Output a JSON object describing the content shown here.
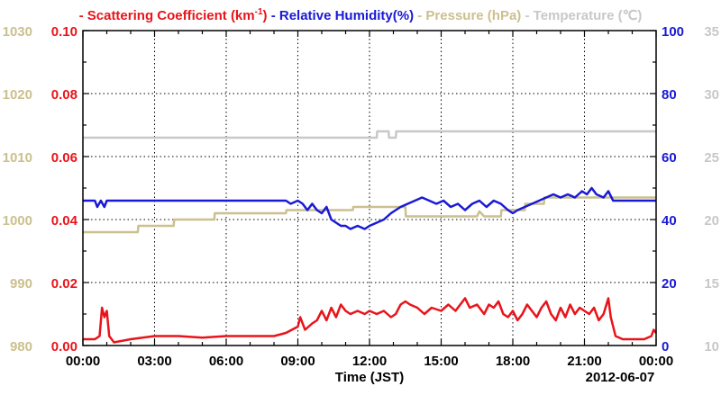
{
  "chart_data": {
    "type": "line",
    "title_parts": [
      {
        "dash": "-",
        "text": "Scattering Coefficient (km",
        "sup": "-1",
        "tail": ")",
        "color": "#e8141a"
      },
      {
        "dash": "-",
        "text": "Relative Humidity(%)",
        "sup": "",
        "tail": "",
        "color": "#1a1ad6"
      },
      {
        "dash": "-",
        "text": "Pressure (hPa)",
        "sup": "",
        "tail": "",
        "color": "#cbc08e"
      },
      {
        "dash": "-",
        "text": "Temperature (℃)",
        "sup": "",
        "tail": "",
        "color": "#c8c8c8"
      }
    ],
    "xlabel": "Time (JST)",
    "date_label": "2012-06-07",
    "x_ticks": [
      "00:00",
      "03:00",
      "06:00",
      "09:00",
      "12:00",
      "15:00",
      "18:00",
      "21:00",
      "00:00"
    ],
    "xlim": [
      0,
      24
    ],
    "grid": true,
    "axes": {
      "scattering": {
        "ylim": [
          0,
          0.1
        ],
        "ticks": [
          "0.00",
          "0.02",
          "0.04",
          "0.06",
          "0.08",
          "0.10"
        ],
        "color": "#e8141a"
      },
      "pressure": {
        "ylim": [
          980,
          1030
        ],
        "ticks": [
          "980",
          "990",
          "1000",
          "1010",
          "1020",
          "1030"
        ],
        "color": "#cbc08e"
      },
      "humidity": {
        "ylim": [
          0,
          100
        ],
        "ticks": [
          "0",
          "20",
          "40",
          "60",
          "80",
          "100"
        ],
        "color": "#1a1ad6"
      },
      "temperature": {
        "ylim": [
          10,
          35
        ],
        "ticks": [
          "10",
          "15",
          "20",
          "25",
          "30",
          "35"
        ],
        "color": "#c8c8c8"
      }
    },
    "series": [
      {
        "axis": "temperature",
        "color": "#c8c8c8",
        "points": [
          [
            0,
            26.5
          ],
          [
            12.3,
            26.5
          ],
          [
            12.32,
            27
          ],
          [
            12.8,
            27
          ],
          [
            12.82,
            26.5
          ],
          [
            13.1,
            26.5
          ],
          [
            13.12,
            27
          ],
          [
            24,
            27
          ]
        ]
      },
      {
        "axis": "pressure",
        "color": "#cbc08e",
        "points": [
          [
            0,
            998
          ],
          [
            2.3,
            998
          ],
          [
            2.32,
            999
          ],
          [
            3.8,
            999
          ],
          [
            3.82,
            1000
          ],
          [
            5.5,
            1000
          ],
          [
            5.52,
            1001
          ],
          [
            8.5,
            1001
          ],
          [
            8.52,
            1001.5
          ],
          [
            11.3,
            1001.5
          ],
          [
            11.32,
            1002
          ],
          [
            13.5,
            1002
          ],
          [
            13.52,
            1000.5
          ],
          [
            16.5,
            1000.5
          ],
          [
            16.6,
            1001.3
          ],
          [
            16.8,
            1000.5
          ],
          [
            17.5,
            1000.5
          ],
          [
            17.52,
            1001.5
          ],
          [
            18.5,
            1001.5
          ],
          [
            18.52,
            1002.5
          ],
          [
            19.3,
            1002.5
          ],
          [
            19.32,
            1003.5
          ],
          [
            24,
            1003.5
          ]
        ]
      },
      {
        "axis": "humidity",
        "color": "#1a1ad6",
        "points": [
          [
            0,
            46
          ],
          [
            0.5,
            46
          ],
          [
            0.6,
            44
          ],
          [
            0.75,
            46
          ],
          [
            0.9,
            44
          ],
          [
            1,
            46
          ],
          [
            8.5,
            46
          ],
          [
            8.7,
            45
          ],
          [
            9,
            46
          ],
          [
            9.2,
            45
          ],
          [
            9.4,
            43
          ],
          [
            9.6,
            45
          ],
          [
            9.8,
            43
          ],
          [
            10,
            42
          ],
          [
            10.2,
            44
          ],
          [
            10.4,
            40
          ],
          [
            10.6,
            39
          ],
          [
            10.8,
            38
          ],
          [
            11,
            38
          ],
          [
            11.2,
            37
          ],
          [
            11.5,
            38
          ],
          [
            11.8,
            37
          ],
          [
            12,
            38
          ],
          [
            12.3,
            39
          ],
          [
            12.6,
            40
          ],
          [
            12.9,
            42
          ],
          [
            13.1,
            43
          ],
          [
            13.3,
            44
          ],
          [
            13.6,
            45
          ],
          [
            13.9,
            46
          ],
          [
            14.2,
            47
          ],
          [
            14.5,
            46
          ],
          [
            14.8,
            45
          ],
          [
            15.1,
            46
          ],
          [
            15.4,
            44
          ],
          [
            15.7,
            45
          ],
          [
            16,
            43
          ],
          [
            16.3,
            45
          ],
          [
            16.6,
            46
          ],
          [
            16.9,
            44
          ],
          [
            17.2,
            46
          ],
          [
            17.5,
            45
          ],
          [
            17.8,
            43
          ],
          [
            18,
            42
          ],
          [
            18.2,
            43
          ],
          [
            18.5,
            44
          ],
          [
            18.8,
            45
          ],
          [
            19.1,
            46
          ],
          [
            19.4,
            47
          ],
          [
            19.7,
            48
          ],
          [
            20,
            47
          ],
          [
            20.3,
            48
          ],
          [
            20.6,
            47
          ],
          [
            20.9,
            49
          ],
          [
            21.1,
            48
          ],
          [
            21.3,
            50
          ],
          [
            21.5,
            48
          ],
          [
            21.8,
            47
          ],
          [
            22,
            49
          ],
          [
            22.2,
            46
          ],
          [
            24,
            46
          ]
        ]
      },
      {
        "axis": "scattering",
        "color": "#e8141a",
        "points": [
          [
            0,
            0.002
          ],
          [
            0.5,
            0.002
          ],
          [
            0.7,
            0.003
          ],
          [
            0.8,
            0.012
          ],
          [
            0.9,
            0.009
          ],
          [
            1,
            0.011
          ],
          [
            1.1,
            0.003
          ],
          [
            1.3,
            0.001
          ],
          [
            2,
            0.002
          ],
          [
            3,
            0.003
          ],
          [
            4,
            0.003
          ],
          [
            5,
            0.0025
          ],
          [
            6,
            0.003
          ],
          [
            7,
            0.003
          ],
          [
            8,
            0.003
          ],
          [
            8.5,
            0.004
          ],
          [
            9,
            0.006
          ],
          [
            9.1,
            0.009
          ],
          [
            9.3,
            0.005
          ],
          [
            9.6,
            0.007
          ],
          [
            9.8,
            0.008
          ],
          [
            10,
            0.011
          ],
          [
            10.2,
            0.008
          ],
          [
            10.4,
            0.012
          ],
          [
            10.6,
            0.009
          ],
          [
            10.8,
            0.013
          ],
          [
            11,
            0.011
          ],
          [
            11.2,
            0.01
          ],
          [
            11.5,
            0.011
          ],
          [
            11.8,
            0.01
          ],
          [
            12,
            0.011
          ],
          [
            12.3,
            0.01
          ],
          [
            12.6,
            0.011
          ],
          [
            12.9,
            0.009
          ],
          [
            13.1,
            0.01
          ],
          [
            13.3,
            0.013
          ],
          [
            13.5,
            0.014
          ],
          [
            13.7,
            0.013
          ],
          [
            14,
            0.012
          ],
          [
            14.3,
            0.01
          ],
          [
            14.6,
            0.012
          ],
          [
            15,
            0.011
          ],
          [
            15.3,
            0.013
          ],
          [
            15.6,
            0.011
          ],
          [
            16,
            0.015
          ],
          [
            16.2,
            0.012
          ],
          [
            16.5,
            0.013
          ],
          [
            16.8,
            0.01
          ],
          [
            17,
            0.013
          ],
          [
            17.2,
            0.012
          ],
          [
            17.4,
            0.014
          ],
          [
            17.6,
            0.01
          ],
          [
            17.8,
            0.009
          ],
          [
            18,
            0.011
          ],
          [
            18.2,
            0.008
          ],
          [
            18.4,
            0.01
          ],
          [
            18.6,
            0.013
          ],
          [
            18.8,
            0.011
          ],
          [
            19,
            0.009
          ],
          [
            19.2,
            0.012
          ],
          [
            19.4,
            0.014
          ],
          [
            19.6,
            0.01
          ],
          [
            19.8,
            0.008
          ],
          [
            20,
            0.012
          ],
          [
            20.2,
            0.009
          ],
          [
            20.4,
            0.013
          ],
          [
            20.6,
            0.01
          ],
          [
            20.8,
            0.012
          ],
          [
            21,
            0.011
          ],
          [
            21.2,
            0.01
          ],
          [
            21.4,
            0.012
          ],
          [
            21.6,
            0.008
          ],
          [
            21.8,
            0.01
          ],
          [
            22,
            0.015
          ],
          [
            22.1,
            0.009
          ],
          [
            22.3,
            0.003
          ],
          [
            22.6,
            0.002
          ],
          [
            23,
            0.002
          ],
          [
            23.5,
            0.002
          ],
          [
            23.8,
            0.003
          ],
          [
            23.9,
            0.005
          ],
          [
            24,
            0.004
          ]
        ]
      }
    ]
  }
}
